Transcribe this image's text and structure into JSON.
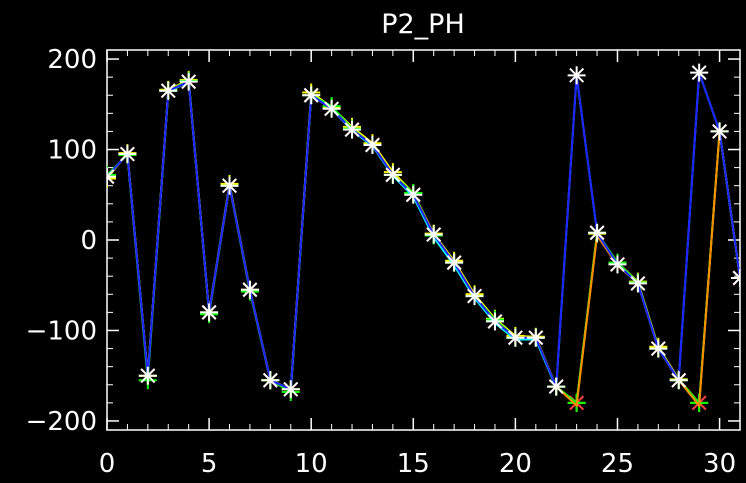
{
  "chart_data": {
    "type": "line",
    "title": "P2_PH",
    "xlabel": "",
    "ylabel": "",
    "xlim": [
      0,
      31
    ],
    "ylim": [
      -210,
      210
    ],
    "xticks": [
      0,
      5,
      10,
      15,
      20,
      25,
      30
    ],
    "yticks": [
      -200,
      -100,
      0,
      100,
      200
    ],
    "xtick_labels": [
      "0",
      "5",
      "10",
      "15",
      "20",
      "25",
      "30"
    ],
    "ytick_labels": [
      "−200",
      "−100",
      "0",
      "100",
      "200"
    ],
    "grid": false,
    "legend": "none",
    "background_color": "#000000",
    "axis_color": "#ffffff",
    "series": [
      {
        "color": "#ff4040",
        "marker": "x",
        "values": [
          70,
          95,
          -150,
          165,
          175,
          -80,
          60,
          -55,
          -155,
          -165,
          160,
          145,
          122,
          105,
          72,
          50,
          6,
          -25,
          -62,
          -90,
          -108,
          -108,
          -162,
          -180,
          8,
          -27,
          -48,
          -120,
          -155,
          -180,
          120,
          -42
        ]
      },
      {
        "color": "#ffff00",
        "marker": "plus",
        "values": [
          68,
          96,
          -150,
          166,
          177,
          -80,
          62,
          -55,
          -155,
          -165,
          163,
          147,
          125,
          107,
          75,
          52,
          7,
          -23,
          -60,
          -87,
          -106,
          -107,
          -162,
          -180,
          7,
          -25,
          -46,
          -118,
          -154,
          -180,
          120,
          -42
        ]
      },
      {
        "color": "#00ff00",
        "marker": "plus",
        "values": [
          72,
          94,
          -155,
          165,
          176,
          -82,
          60,
          -57,
          -155,
          -168,
          160,
          148,
          123,
          105,
          72,
          52,
          5,
          -25,
          -62,
          -88,
          -108,
          -108,
          -162,
          -180,
          8,
          -25,
          -47,
          -120,
          -155,
          -180,
          120,
          -42
        ]
      },
      {
        "color": "#ff8c00",
        "marker": "none",
        "values": [
          70,
          95,
          -150,
          165,
          175,
          -80,
          60,
          -55,
          -155,
          -165,
          160,
          145,
          122,
          105,
          72,
          50,
          6,
          -25,
          -62,
          -90,
          -108,
          -108,
          -162,
          -183,
          5,
          -28,
          -48,
          -120,
          -155,
          -183,
          120,
          -42
        ]
      },
      {
        "color": "#00ffff",
        "marker": "none",
        "values": [
          70,
          95,
          -150,
          164,
          175,
          -80,
          60,
          -55,
          -155,
          -165,
          160,
          145,
          121,
          104,
          71,
          48,
          3,
          -28,
          -64,
          -92,
          -110,
          -110,
          -163,
          182,
          8,
          -27,
          -48,
          -120,
          -155,
          185,
          120,
          -42
        ]
      },
      {
        "color": "#2020ff",
        "marker": "asterisk",
        "values": [
          70,
          95,
          -150,
          165,
          175,
          -80,
          60,
          -55,
          -155,
          -165,
          160,
          145,
          122,
          105,
          72,
          50,
          6,
          -25,
          -62,
          -90,
          -108,
          -108,
          -162,
          182,
          8,
          -27,
          -48,
          -120,
          -155,
          185,
          120,
          -42
        ]
      }
    ]
  }
}
